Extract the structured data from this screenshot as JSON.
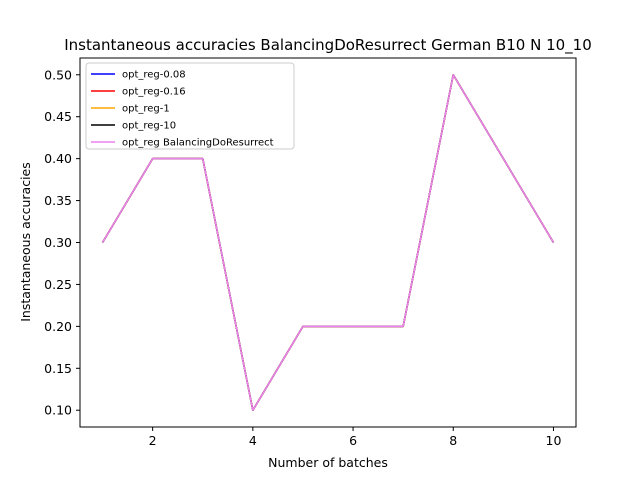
{
  "chart_data": {
    "type": "line",
    "title": "Instantaneous accuracies BalancingDoResurrect German B10 N 10_10",
    "xlabel": "Number of batches",
    "ylabel": "Instantaneous accuracies",
    "x": [
      1,
      2,
      3,
      4,
      5,
      6,
      7,
      8,
      9,
      10
    ],
    "xlim": [
      0.55,
      10.45
    ],
    "ylim": [
      0.08,
      0.52
    ],
    "xticks": [
      2,
      4,
      6,
      8,
      10
    ],
    "yticks": [
      0.1,
      0.15,
      0.2,
      0.25,
      0.3,
      0.35,
      0.4,
      0.45,
      0.5
    ],
    "grid": false,
    "legend_position": "top-left",
    "series": [
      {
        "name": "opt_reg-0.08",
        "color": "#0000ff",
        "values": [
          0.3,
          0.4,
          0.4,
          0.1,
          0.2,
          0.2,
          0.2,
          0.5,
          0.4,
          0.3
        ]
      },
      {
        "name": "opt_reg-0.16",
        "color": "#ff0000",
        "values": [
          0.3,
          0.4,
          0.4,
          0.1,
          0.2,
          0.2,
          0.2,
          0.5,
          0.4,
          0.3
        ]
      },
      {
        "name": "opt_reg-1",
        "color": "#ffa500",
        "values": [
          0.3,
          0.4,
          0.4,
          0.1,
          0.2,
          0.2,
          0.2,
          0.5,
          0.4,
          0.3
        ]
      },
      {
        "name": "opt_reg-10",
        "color": "#000000",
        "values": [
          0.3,
          0.4,
          0.4,
          0.1,
          0.2,
          0.2,
          0.2,
          0.5,
          0.4,
          0.3
        ]
      },
      {
        "name": "opt_reg BalancingDoResurrect",
        "color": "#ee82ee",
        "values": [
          0.3,
          0.4,
          0.4,
          0.1,
          0.2,
          0.2,
          0.2,
          0.5,
          0.4,
          0.3
        ]
      }
    ]
  }
}
